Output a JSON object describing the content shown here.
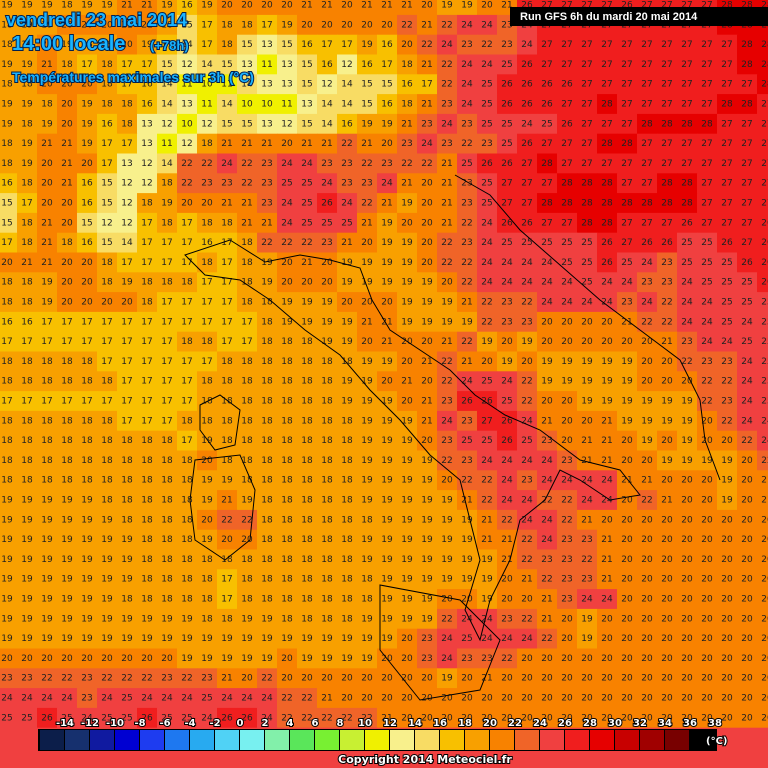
{
  "header": {
    "date": "vendredi 23 mai 2014",
    "time": "14:00 locale",
    "lead": "(+78h)",
    "subtitle": "Températures maximales sur 3h (°C)",
    "run": "Run GFS 6h du mardi 20 mai 2014"
  },
  "grid": {
    "rows": [
      [
        19,
        19,
        19,
        18,
        19,
        19,
        21,
        21,
        19,
        16,
        19,
        20,
        20,
        20,
        20,
        21,
        21,
        20,
        21,
        21,
        21,
        20,
        19,
        19,
        20,
        21,
        26,
        27,
        27,
        27,
        27,
        26,
        27,
        27,
        27,
        27,
        28,
        28,
        28
      ],
      [
        18,
        19,
        19,
        20,
        20,
        20,
        21,
        21,
        18,
        15,
        17,
        18,
        18,
        17,
        19,
        20,
        20,
        20,
        20,
        20,
        22,
        21,
        22,
        24,
        24,
        23,
        24,
        27,
        27,
        27,
        27,
        27,
        27,
        27,
        27,
        27,
        28,
        28,
        28
      ],
      [
        18,
        19,
        21,
        19,
        18,
        18,
        20,
        19,
        17,
        14,
        17,
        18,
        15,
        13,
        15,
        16,
        17,
        17,
        19,
        16,
        20,
        22,
        24,
        23,
        22,
        23,
        24,
        27,
        27,
        27,
        27,
        27,
        27,
        27,
        27,
        27,
        27,
        28,
        28
      ],
      [
        19,
        19,
        21,
        18,
        17,
        18,
        17,
        17,
        15,
        12,
        14,
        15,
        13,
        11,
        13,
        15,
        16,
        12,
        16,
        17,
        18,
        21,
        22,
        24,
        24,
        25,
        26,
        27,
        27,
        27,
        27,
        27,
        27,
        27,
        27,
        27,
        27,
        28,
        28
      ],
      [
        18,
        18,
        20,
        20,
        20,
        18,
        17,
        16,
        14,
        11,
        10,
        11,
        14,
        13,
        13,
        15,
        12,
        14,
        15,
        15,
        16,
        17,
        22,
        24,
        25,
        26,
        26,
        26,
        26,
        27,
        27,
        27,
        27,
        27,
        27,
        27,
        27,
        27,
        28
      ],
      [
        19,
        19,
        18,
        20,
        19,
        18,
        18,
        16,
        14,
        13,
        11,
        14,
        10,
        10,
        11,
        13,
        14,
        14,
        15,
        16,
        18,
        21,
        23,
        24,
        25,
        26,
        26,
        26,
        27,
        27,
        28,
        27,
        27,
        27,
        27,
        27,
        28,
        28,
        27
      ],
      [
        19,
        18,
        19,
        20,
        19,
        16,
        18,
        13,
        12,
        10,
        12,
        15,
        15,
        13,
        12,
        15,
        14,
        16,
        19,
        19,
        21,
        23,
        24,
        23,
        25,
        25,
        24,
        25,
        26,
        27,
        27,
        27,
        28,
        28,
        28,
        28,
        27,
        27,
        27
      ],
      [
        18,
        19,
        21,
        21,
        19,
        17,
        17,
        13,
        11,
        12,
        18,
        21,
        21,
        21,
        20,
        21,
        21,
        22,
        21,
        20,
        23,
        24,
        23,
        22,
        23,
        25,
        26,
        27,
        27,
        27,
        28,
        28,
        27,
        27,
        27,
        27,
        27,
        27,
        27
      ],
      [
        18,
        19,
        20,
        21,
        20,
        17,
        13,
        12,
        14,
        22,
        22,
        24,
        22,
        23,
        24,
        24,
        23,
        23,
        22,
        23,
        22,
        22,
        21,
        25,
        26,
        26,
        27,
        28,
        27,
        27,
        27,
        27,
        27,
        27,
        27,
        27,
        27,
        27,
        27
      ],
      [
        16,
        18,
        20,
        21,
        16,
        15,
        12,
        12,
        18,
        22,
        23,
        23,
        22,
        23,
        25,
        25,
        24,
        23,
        23,
        24,
        21,
        20,
        21,
        23,
        25,
        27,
        27,
        27,
        28,
        28,
        28,
        27,
        27,
        28,
        28,
        27,
        27,
        27,
        27
      ],
      [
        15,
        17,
        20,
        20,
        16,
        15,
        12,
        18,
        19,
        20,
        20,
        21,
        21,
        23,
        24,
        25,
        26,
        24,
        22,
        21,
        19,
        20,
        21,
        23,
        25,
        27,
        27,
        28,
        28,
        28,
        28,
        28,
        28,
        28,
        28,
        27,
        27,
        27,
        27
      ],
      [
        15,
        18,
        21,
        20,
        15,
        12,
        12,
        17,
        18,
        17,
        18,
        18,
        21,
        21,
        24,
        25,
        25,
        25,
        21,
        19,
        20,
        20,
        21,
        22,
        24,
        26,
        26,
        27,
        27,
        28,
        28,
        27,
        27,
        27,
        26,
        27,
        27,
        27,
        26
      ],
      [
        17,
        18,
        21,
        18,
        16,
        15,
        14,
        17,
        17,
        17,
        16,
        17,
        18,
        22,
        22,
        22,
        23,
        21,
        20,
        19,
        19,
        20,
        22,
        23,
        24,
        25,
        25,
        25,
        25,
        25,
        26,
        27,
        26,
        26,
        25,
        25,
        26,
        27,
        26
      ],
      [
        20,
        21,
        21,
        20,
        20,
        18,
        17,
        17,
        17,
        17,
        18,
        17,
        18,
        19,
        20,
        21,
        20,
        19,
        19,
        19,
        19,
        20,
        22,
        22,
        24,
        24,
        24,
        24,
        25,
        25,
        26,
        25,
        24,
        23,
        25,
        25,
        25,
        26,
        26
      ],
      [
        18,
        18,
        19,
        20,
        20,
        18,
        19,
        18,
        18,
        18,
        17,
        17,
        18,
        19,
        20,
        20,
        20,
        19,
        19,
        19,
        19,
        19,
        20,
        22,
        24,
        24,
        24,
        24,
        24,
        25,
        24,
        24,
        23,
        23,
        24,
        25,
        25,
        25,
        26
      ],
      [
        18,
        18,
        19,
        20,
        20,
        20,
        20,
        18,
        17,
        17,
        17,
        17,
        18,
        18,
        19,
        19,
        19,
        20,
        20,
        20,
        19,
        19,
        19,
        21,
        22,
        23,
        22,
        24,
        24,
        24,
        24,
        23,
        24,
        22,
        24,
        24,
        25,
        25,
        25
      ],
      [
        16,
        16,
        17,
        17,
        17,
        17,
        17,
        17,
        17,
        17,
        17,
        17,
        17,
        18,
        19,
        19,
        19,
        19,
        21,
        21,
        19,
        19,
        19,
        19,
        22,
        23,
        23,
        20,
        20,
        20,
        20,
        21,
        22,
        22,
        24,
        24,
        25,
        24,
        25
      ],
      [
        17,
        17,
        17,
        17,
        17,
        17,
        17,
        17,
        17,
        18,
        18,
        17,
        17,
        18,
        18,
        18,
        19,
        19,
        20,
        21,
        20,
        20,
        21,
        22,
        19,
        20,
        19,
        20,
        20,
        20,
        20,
        20,
        20,
        21,
        23,
        24,
        24,
        25,
        25
      ],
      [
        18,
        18,
        18,
        18,
        18,
        17,
        17,
        17,
        17,
        17,
        17,
        18,
        18,
        18,
        18,
        18,
        18,
        18,
        19,
        19,
        20,
        21,
        22,
        21,
        20,
        19,
        20,
        19,
        19,
        19,
        19,
        19,
        20,
        20,
        22,
        23,
        23,
        24,
        25
      ],
      [
        18,
        18,
        18,
        18,
        18,
        18,
        17,
        17,
        17,
        17,
        18,
        18,
        18,
        18,
        18,
        18,
        18,
        19,
        19,
        20,
        21,
        20,
        22,
        24,
        25,
        24,
        22,
        19,
        19,
        19,
        19,
        19,
        20,
        20,
        20,
        22,
        22,
        24,
        25
      ],
      [
        17,
        17,
        17,
        17,
        17,
        17,
        17,
        17,
        17,
        17,
        18,
        18,
        18,
        18,
        18,
        18,
        18,
        19,
        19,
        19,
        20,
        21,
        23,
        26,
        26,
        25,
        22,
        20,
        20,
        19,
        19,
        19,
        19,
        19,
        19,
        22,
        23,
        24,
        25
      ],
      [
        18,
        18,
        18,
        18,
        18,
        18,
        17,
        17,
        17,
        18,
        18,
        18,
        18,
        18,
        18,
        18,
        18,
        18,
        19,
        19,
        19,
        21,
        24,
        23,
        27,
        26,
        24,
        21,
        20,
        20,
        21,
        19,
        19,
        19,
        19,
        20,
        22,
        24,
        24
      ],
      [
        18,
        18,
        18,
        18,
        18,
        18,
        18,
        18,
        18,
        17,
        19,
        18,
        18,
        18,
        18,
        18,
        18,
        18,
        19,
        19,
        19,
        20,
        23,
        25,
        25,
        26,
        25,
        23,
        20,
        21,
        21,
        20,
        19,
        20,
        19,
        20,
        20,
        22,
        24
      ],
      [
        18,
        18,
        18,
        18,
        18,
        18,
        18,
        18,
        18,
        18,
        20,
        18,
        18,
        18,
        18,
        18,
        18,
        18,
        19,
        19,
        19,
        19,
        22,
        23,
        24,
        24,
        24,
        24,
        23,
        21,
        21,
        20,
        20,
        19,
        19,
        19,
        19,
        20,
        22
      ],
      [
        18,
        18,
        18,
        18,
        18,
        18,
        18,
        18,
        18,
        18,
        19,
        19,
        18,
        18,
        18,
        18,
        18,
        18,
        19,
        19,
        19,
        19,
        20,
        22,
        22,
        24,
        23,
        24,
        24,
        24,
        24,
        21,
        21,
        20,
        20,
        20,
        19,
        20,
        21
      ],
      [
        19,
        19,
        19,
        19,
        19,
        18,
        18,
        18,
        18,
        18,
        19,
        21,
        19,
        18,
        18,
        18,
        18,
        18,
        19,
        19,
        19,
        19,
        19,
        21,
        22,
        24,
        24,
        22,
        22,
        24,
        24,
        20,
        22,
        21,
        20,
        20,
        19,
        20,
        21
      ],
      [
        19,
        19,
        19,
        19,
        19,
        19,
        18,
        18,
        18,
        18,
        20,
        22,
        22,
        18,
        18,
        18,
        18,
        18,
        18,
        19,
        19,
        19,
        19,
        19,
        21,
        22,
        24,
        24,
        22,
        21,
        20,
        20,
        20,
        20,
        20,
        20,
        20,
        20,
        20
      ],
      [
        19,
        19,
        19,
        19,
        19,
        19,
        19,
        18,
        18,
        18,
        19,
        20,
        20,
        18,
        18,
        18,
        18,
        18,
        19,
        19,
        19,
        19,
        19,
        19,
        21,
        21,
        22,
        24,
        23,
        23,
        21,
        20,
        20,
        20,
        20,
        20,
        20,
        20,
        20
      ],
      [
        19,
        19,
        19,
        19,
        19,
        19,
        19,
        18,
        18,
        18,
        18,
        18,
        18,
        18,
        18,
        18,
        18,
        18,
        19,
        19,
        19,
        19,
        19,
        19,
        19,
        21,
        22,
        23,
        23,
        22,
        21,
        20,
        20,
        20,
        20,
        20,
        20,
        20,
        20
      ],
      [
        19,
        19,
        19,
        19,
        19,
        19,
        19,
        18,
        18,
        18,
        18,
        17,
        18,
        18,
        18,
        18,
        18,
        18,
        18,
        19,
        19,
        19,
        19,
        19,
        19,
        20,
        21,
        22,
        23,
        23,
        21,
        20,
        20,
        20,
        20,
        20,
        20,
        20,
        20
      ],
      [
        19,
        19,
        19,
        19,
        19,
        19,
        18,
        18,
        18,
        18,
        18,
        17,
        18,
        18,
        18,
        18,
        18,
        18,
        18,
        19,
        19,
        19,
        20,
        20,
        19,
        20,
        20,
        21,
        23,
        24,
        24,
        20,
        20,
        20,
        20,
        20,
        20,
        20,
        20
      ],
      [
        19,
        19,
        19,
        19,
        19,
        19,
        19,
        19,
        19,
        19,
        18,
        18,
        19,
        19,
        18,
        18,
        18,
        18,
        19,
        19,
        19,
        19,
        22,
        24,
        24,
        23,
        22,
        21,
        20,
        19,
        20,
        20,
        20,
        20,
        20,
        20,
        20,
        20,
        20
      ],
      [
        19,
        19,
        19,
        19,
        19,
        19,
        19,
        19,
        19,
        19,
        19,
        19,
        19,
        19,
        19,
        19,
        19,
        19,
        19,
        19,
        20,
        23,
        24,
        25,
        24,
        24,
        24,
        22,
        20,
        19,
        20,
        20,
        20,
        20,
        20,
        20,
        20,
        20,
        20
      ],
      [
        20,
        20,
        20,
        20,
        20,
        20,
        20,
        20,
        20,
        19,
        19,
        19,
        19,
        19,
        20,
        19,
        19,
        19,
        19,
        20,
        20,
        23,
        24,
        23,
        23,
        22,
        20,
        20,
        20,
        20,
        20,
        20,
        20,
        20,
        20,
        20,
        20,
        20,
        20
      ],
      [
        23,
        23,
        22,
        22,
        23,
        22,
        22,
        22,
        23,
        22,
        23,
        21,
        20,
        22,
        20,
        20,
        20,
        20,
        20,
        20,
        20,
        20,
        19,
        20,
        21,
        20,
        20,
        20,
        20,
        20,
        20,
        20,
        20,
        20,
        20,
        20,
        20,
        20,
        20
      ],
      [
        24,
        24,
        24,
        24,
        23,
        24,
        25,
        24,
        24,
        24,
        25,
        24,
        24,
        24,
        22,
        22,
        21,
        20,
        20,
        20,
        20,
        20,
        20,
        20,
        20,
        20,
        20,
        20,
        20,
        20,
        20,
        20,
        20,
        20,
        20,
        20,
        20,
        20,
        20
      ],
      [
        25,
        25,
        26,
        25,
        24,
        25,
        25,
        26,
        25,
        25,
        24,
        26,
        26,
        24,
        22,
        22,
        22,
        22,
        22,
        21,
        20,
        20,
        20,
        20,
        20,
        20,
        20,
        20,
        20,
        20,
        20,
        20,
        20,
        20,
        20,
        20,
        20,
        20,
        20
      ]
    ]
  },
  "legend": {
    "labels": [
      -14,
      -12,
      -10,
      -8,
      -6,
      -4,
      -2,
      0,
      2,
      4,
      6,
      8,
      10,
      12,
      14,
      16,
      18,
      20,
      22,
      24,
      26,
      28,
      30,
      32,
      34,
      36,
      38
    ],
    "colors": [
      "#0c1e4a",
      "#16306e",
      "#101aa0",
      "#0000d2",
      "#1e3cf0",
      "#1e78f0",
      "#28aaf0",
      "#50d2f5",
      "#78f0f0",
      "#82f0aa",
      "#5ae65a",
      "#78f032",
      "#c8f032",
      "#f0f000",
      "#f8f08c",
      "#f8dc64",
      "#f8c000",
      "#f8a000",
      "#f88200",
      "#f06428",
      "#f04040",
      "#f01e1e",
      "#e60000",
      "#c80000",
      "#a00000",
      "#780000",
      "#000000"
    ],
    "unit": "(°C)"
  },
  "footer": {
    "copyright": "Copyright 2014 Meteociel.fr"
  }
}
